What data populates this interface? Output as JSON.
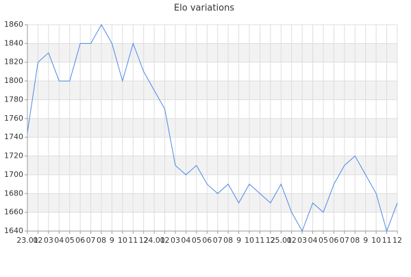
{
  "chart_data": {
    "type": "line",
    "title": "Elo variations",
    "categories": [
      "23.01",
      "02",
      "03",
      "04",
      "05",
      "06",
      "07",
      "08",
      "9",
      "10",
      "11",
      "12",
      "24.01",
      "02",
      "03",
      "04",
      "05",
      "06",
      "07",
      "08",
      "9",
      "10",
      "11",
      "12",
      "25.01",
      "02",
      "03",
      "04",
      "05",
      "06",
      "07",
      "08",
      "9",
      "10",
      "11",
      "12"
    ],
    "values": [
      1745,
      1820,
      1830,
      1800,
      1800,
      1840,
      1840,
      1860,
      1840,
      1800,
      1840,
      1810,
      1790,
      1770,
      1710,
      1700,
      1710,
      1690,
      1680,
      1690,
      1670,
      1690,
      1680,
      1670,
      1690,
      1660,
      1640,
      1670,
      1660,
      1690,
      1710,
      1720,
      1700,
      1680,
      1640,
      1670
    ],
    "color": "#4a86e8",
    "ylim": [
      1640,
      1860
    ],
    "yticks": [
      1640,
      1660,
      1680,
      1700,
      1720,
      1740,
      1760,
      1780,
      1800,
      1820,
      1840,
      1860
    ],
    "grid": true,
    "band_color": "#f2f2f2"
  }
}
